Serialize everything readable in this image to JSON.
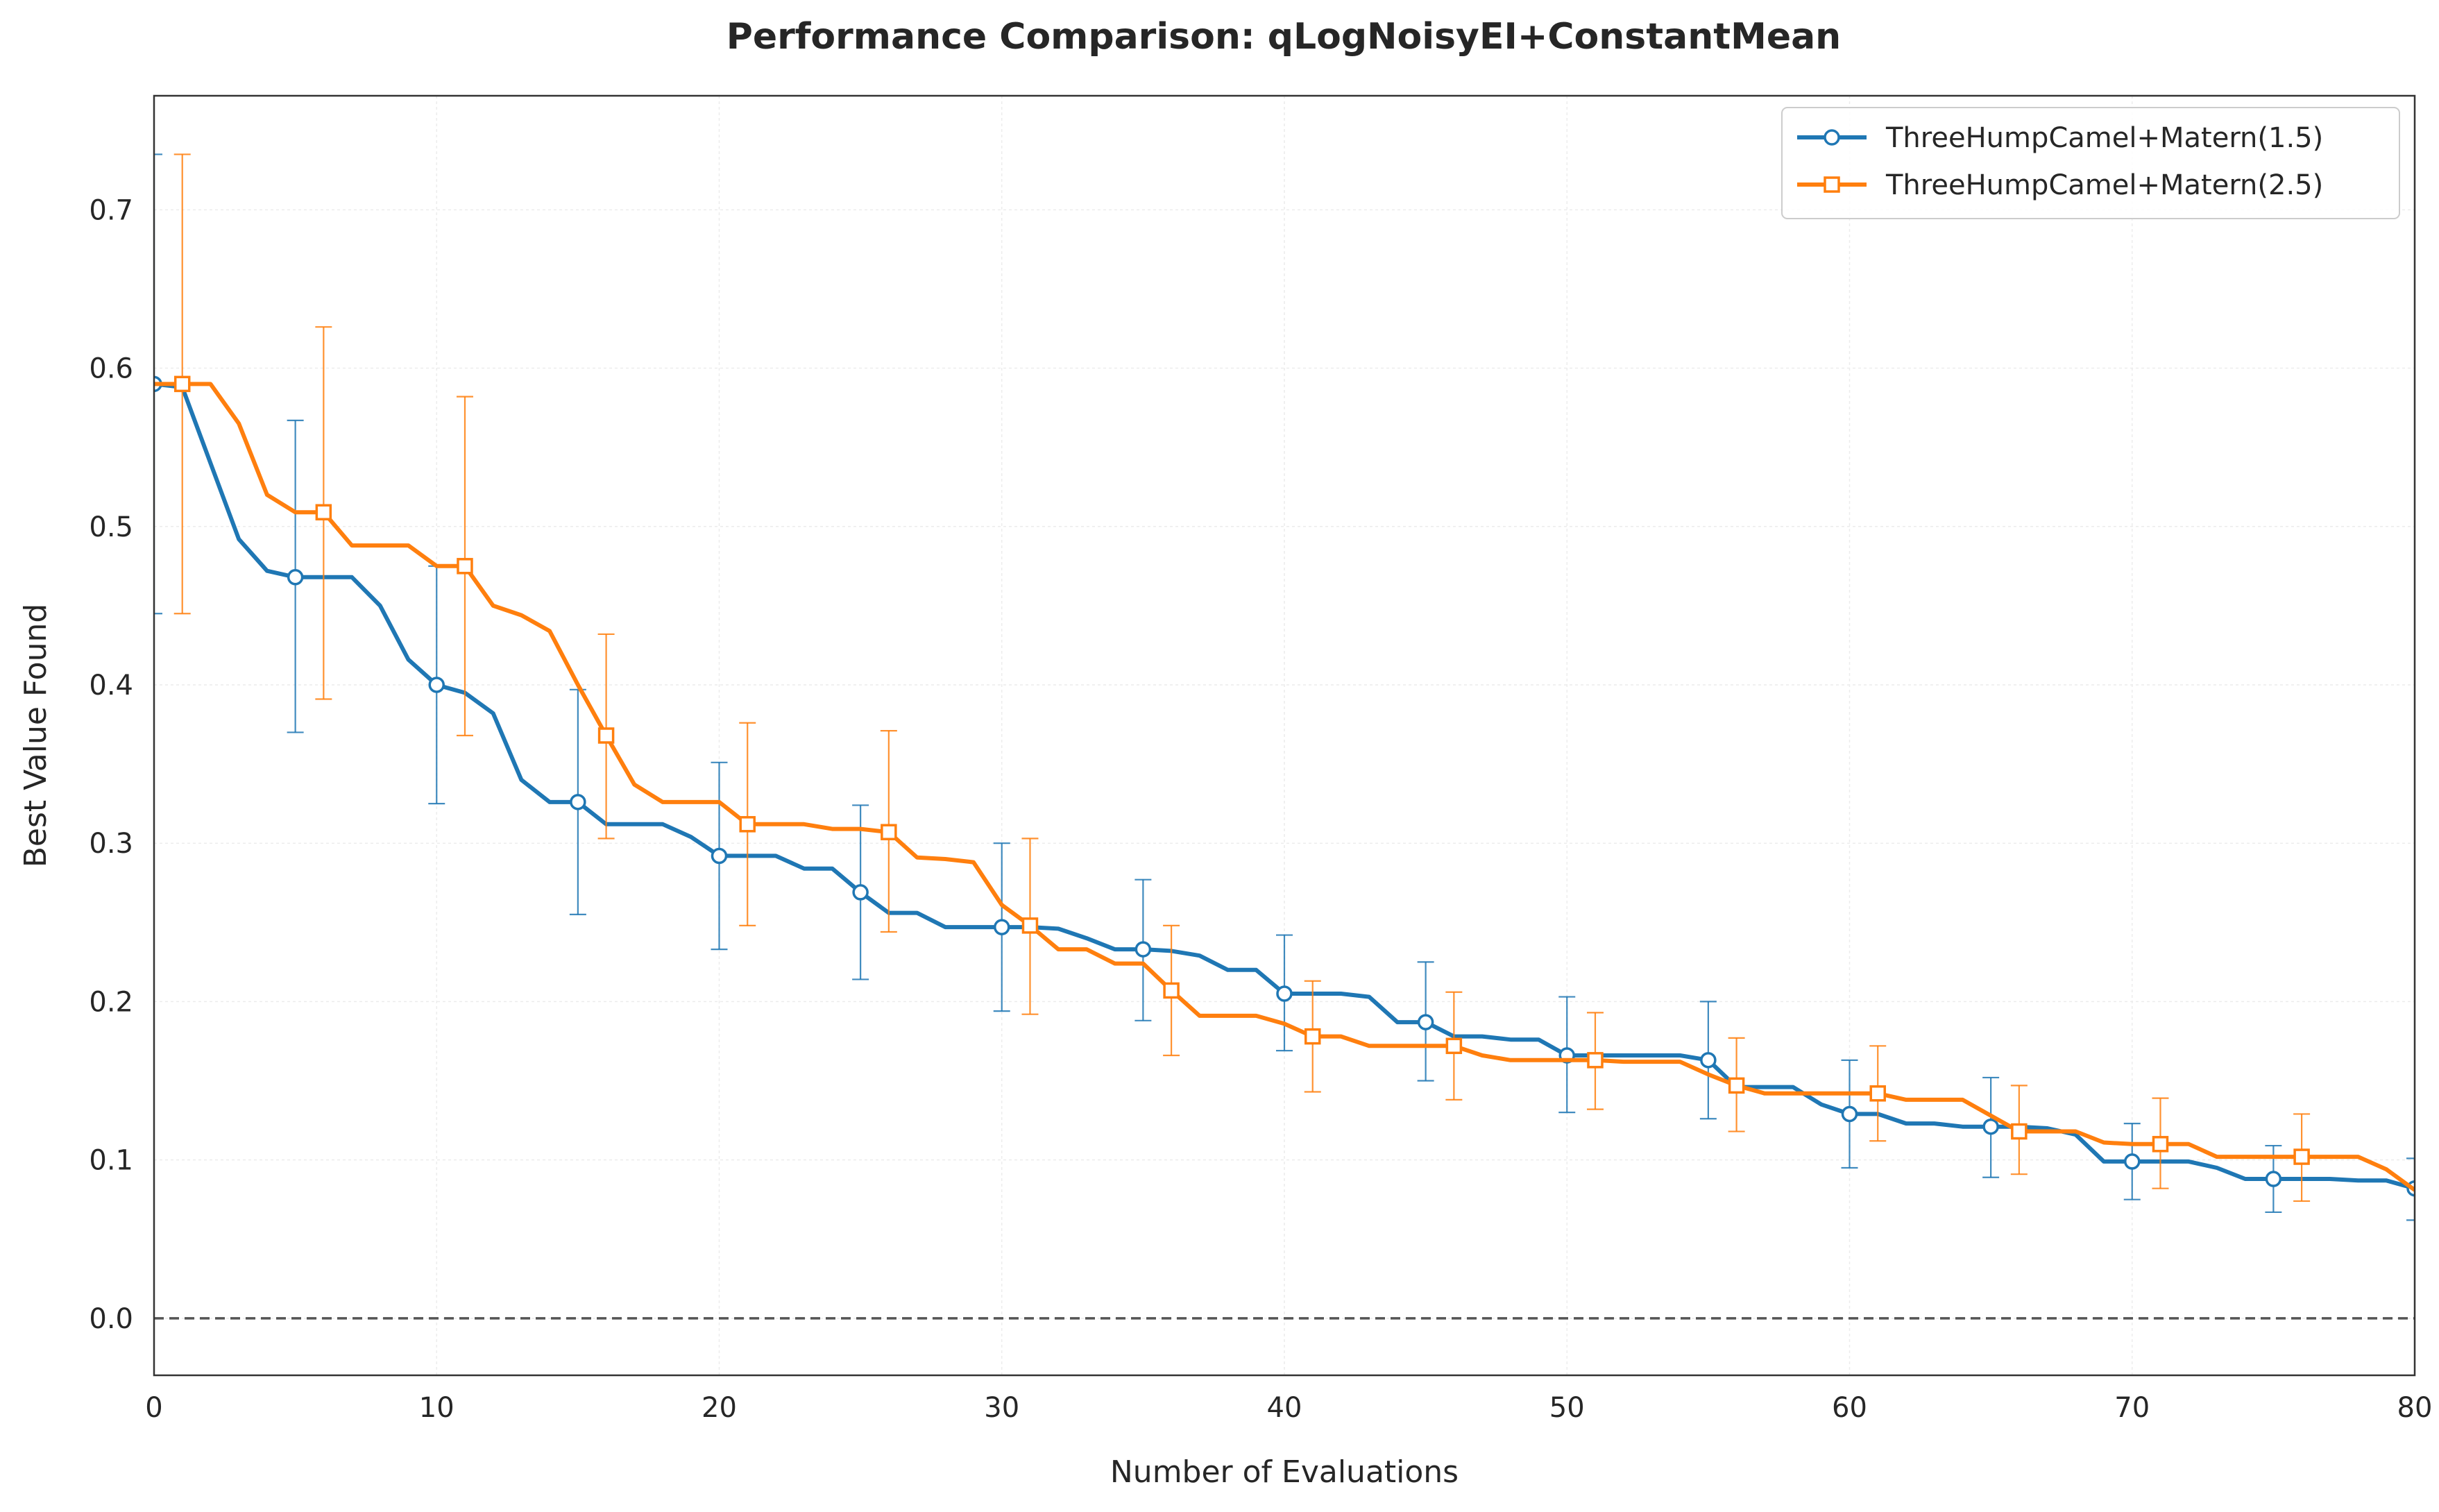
{
  "chart_data": {
    "type": "line",
    "title": "Performance Comparison: qLogNoisyEI+ConstantMean",
    "xlabel": "Number of Evaluations",
    "ylabel": "Best Value Found",
    "xlim": [
      0,
      80
    ],
    "ylim": [
      -0.036,
      0.772
    ],
    "xticks": [
      0,
      10,
      20,
      30,
      40,
      50,
      60,
      70,
      80
    ],
    "xtick_labels": [
      "0",
      "10",
      "20",
      "30",
      "40",
      "50",
      "60",
      "70",
      "80"
    ],
    "yticks": [
      0.0,
      0.1,
      0.2,
      0.3,
      0.4,
      0.5,
      0.6,
      0.7
    ],
    "ytick_labels": [
      "0.0",
      "0.1",
      "0.2",
      "0.3",
      "0.4",
      "0.5",
      "0.6",
      "0.7"
    ],
    "grid": true,
    "legend_position": "top-right",
    "reference_line": {
      "y": 0.0,
      "style": "dashed",
      "color": "#555555"
    },
    "series": [
      {
        "name": "ThreeHumpCamel+Matern(1.5)",
        "color": "#1f77b4",
        "marker": "circle",
        "x": [
          0,
          1,
          2,
          3,
          4,
          5,
          6,
          7,
          8,
          9,
          10,
          11,
          12,
          13,
          14,
          15,
          16,
          17,
          18,
          19,
          20,
          21,
          22,
          23,
          24,
          25,
          26,
          27,
          28,
          29,
          30,
          31,
          32,
          33,
          34,
          35,
          36,
          37,
          38,
          39,
          40,
          41,
          42,
          43,
          44,
          45,
          46,
          47,
          48,
          49,
          50,
          51,
          52,
          53,
          54,
          55,
          56,
          57,
          58,
          59,
          60,
          61,
          62,
          63,
          64,
          65,
          66,
          67,
          68,
          69,
          70,
          71,
          72,
          73,
          74,
          75,
          76,
          77,
          78,
          79,
          80
        ],
        "y": [
          0.59,
          0.588,
          0.54,
          0.492,
          0.472,
          0.468,
          0.468,
          0.468,
          0.45,
          0.416,
          0.4,
          0.395,
          0.382,
          0.34,
          0.326,
          0.326,
          0.312,
          0.312,
          0.312,
          0.304,
          0.292,
          0.292,
          0.292,
          0.284,
          0.284,
          0.269,
          0.256,
          0.256,
          0.247,
          0.247,
          0.247,
          0.247,
          0.246,
          0.24,
          0.233,
          0.233,
          0.232,
          0.229,
          0.22,
          0.22,
          0.205,
          0.205,
          0.205,
          0.203,
          0.187,
          0.187,
          0.178,
          0.178,
          0.176,
          0.176,
          0.166,
          0.166,
          0.166,
          0.166,
          0.166,
          0.163,
          0.146,
          0.146,
          0.146,
          0.135,
          0.129,
          0.129,
          0.123,
          0.123,
          0.121,
          0.121,
          0.121,
          0.12,
          0.116,
          0.099,
          0.099,
          0.099,
          0.099,
          0.095,
          0.088,
          0.088,
          0.088,
          0.088,
          0.087,
          0.087,
          0.082
        ],
        "error_x": [
          0,
          5,
          10,
          15,
          20,
          25,
          30,
          35,
          40,
          45,
          50,
          55,
          60,
          65,
          70,
          75,
          80
        ],
        "error_lower": [
          0.445,
          0.37,
          0.325,
          0.255,
          0.233,
          0.214,
          0.194,
          0.188,
          0.169,
          0.15,
          0.13,
          0.126,
          0.095,
          0.089,
          0.075,
          0.067,
          0.062
        ],
        "error_upper": [
          0.735,
          0.567,
          0.475,
          0.397,
          0.351,
          0.324,
          0.3,
          0.277,
          0.242,
          0.225,
          0.203,
          0.2,
          0.163,
          0.152,
          0.123,
          0.109,
          0.101
        ]
      },
      {
        "name": "ThreeHumpCamel+Matern(2.5)",
        "color": "#ff7f0e",
        "marker": "square",
        "x": [
          0,
          1,
          2,
          3,
          4,
          5,
          6,
          7,
          8,
          9,
          10,
          11,
          12,
          13,
          14,
          15,
          16,
          17,
          18,
          19,
          20,
          21,
          22,
          23,
          24,
          25,
          26,
          27,
          28,
          29,
          30,
          31,
          32,
          33,
          34,
          35,
          36,
          37,
          38,
          39,
          40,
          41,
          42,
          43,
          44,
          45,
          46,
          47,
          48,
          49,
          50,
          51,
          52,
          53,
          54,
          55,
          56,
          57,
          58,
          59,
          60,
          61,
          62,
          63,
          64,
          65,
          66,
          67,
          68,
          69,
          70,
          71,
          72,
          73,
          74,
          75,
          76,
          77,
          78,
          79,
          80
        ],
        "y": [
          0.59,
          0.59,
          0.59,
          0.565,
          0.52,
          0.509,
          0.509,
          0.488,
          0.488,
          0.488,
          0.475,
          0.475,
          0.45,
          0.444,
          0.434,
          0.4,
          0.368,
          0.337,
          0.326,
          0.326,
          0.326,
          0.312,
          0.312,
          0.312,
          0.309,
          0.309,
          0.307,
          0.291,
          0.29,
          0.288,
          0.261,
          0.248,
          0.233,
          0.233,
          0.224,
          0.224,
          0.207,
          0.191,
          0.191,
          0.191,
          0.186,
          0.178,
          0.178,
          0.172,
          0.172,
          0.172,
          0.172,
          0.166,
          0.163,
          0.163,
          0.163,
          0.163,
          0.162,
          0.162,
          0.162,
          0.154,
          0.147,
          0.142,
          0.142,
          0.142,
          0.142,
          0.142,
          0.138,
          0.138,
          0.138,
          0.128,
          0.118,
          0.118,
          0.118,
          0.111,
          0.11,
          0.11,
          0.11,
          0.102,
          0.102,
          0.102,
          0.102,
          0.102,
          0.102,
          0.094,
          0.081
        ],
        "error_x": [
          1,
          6,
          11,
          16,
          21,
          26,
          31,
          36,
          41,
          46,
          51,
          56,
          61,
          66,
          71,
          76,
          81
        ],
        "error_center": [
          0.59,
          0.509,
          0.475,
          0.368,
          0.312,
          0.307,
          0.248,
          0.207,
          0.178,
          0.172,
          0.163,
          0.147,
          0.142,
          0.118,
          0.11,
          0.102,
          0.081
        ],
        "error_lower": [
          0.445,
          0.391,
          0.368,
          0.303,
          0.248,
          0.244,
          0.192,
          0.166,
          0.143,
          0.138,
          0.132,
          0.118,
          0.112,
          0.091,
          0.082,
          0.074,
          0.061
        ],
        "error_upper": [
          0.735,
          0.626,
          0.582,
          0.432,
          0.376,
          0.371,
          0.303,
          0.248,
          0.213,
          0.206,
          0.193,
          0.177,
          0.172,
          0.147,
          0.139,
          0.129,
          0.105
        ]
      }
    ]
  }
}
